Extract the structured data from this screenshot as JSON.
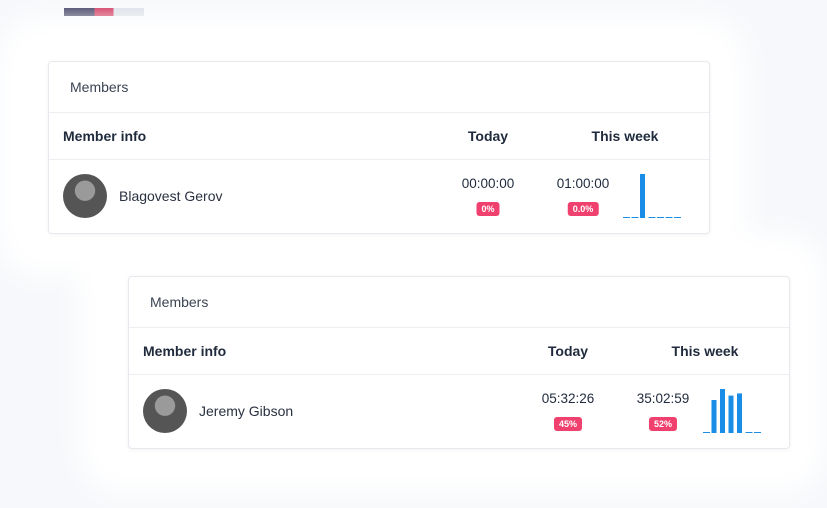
{
  "cards": [
    {
      "title": "Members",
      "columns": [
        "Member info",
        "Today",
        "This week"
      ],
      "member": {
        "name": "Blagovest Gerov",
        "today": "00:00:00",
        "today_badge": "0%",
        "week": "01:00:00",
        "week_badge": "0.0%",
        "daily": [
          0,
          0,
          1,
          0,
          0,
          0,
          0
        ]
      }
    },
    {
      "title": "Members",
      "columns": [
        "Member info",
        "Today",
        "This week"
      ],
      "member": {
        "name": "Jeremy Gibson",
        "today": "05:32:26",
        "today_badge": "45%",
        "week": "35:02:59",
        "week_badge": "52%",
        "daily": [
          0,
          7.5,
          10,
          8.5,
          9,
          0,
          0
        ]
      }
    }
  ]
}
